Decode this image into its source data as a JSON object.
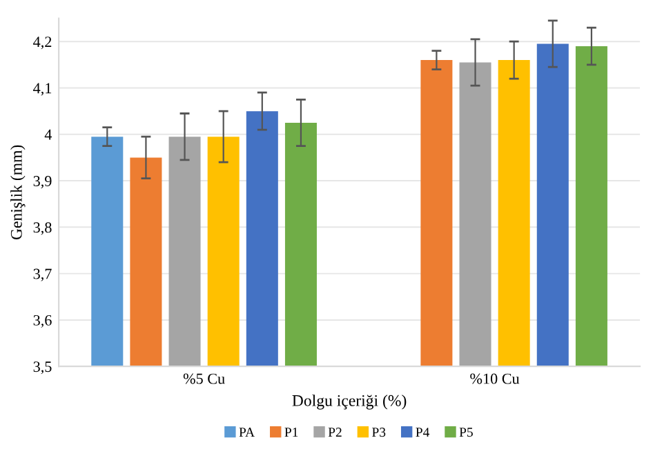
{
  "chart_data": {
    "type": "bar",
    "xlabel": "Dolgu içeriği (%)",
    "ylabel": "Genişlik (mm)",
    "categories": [
      "%5 Cu",
      "%10 Cu"
    ],
    "series": [
      {
        "name": "PA",
        "color": "#5b9bd5",
        "values": [
          3.995,
          null
        ],
        "errors": [
          0.02,
          null
        ]
      },
      {
        "name": "P1",
        "color": "#ed7d31",
        "values": [
          3.95,
          4.16
        ],
        "errors": [
          0.045,
          0.02
        ]
      },
      {
        "name": "P2",
        "color": "#a5a5a5",
        "values": [
          3.995,
          4.155
        ],
        "errors": [
          0.05,
          0.05
        ]
      },
      {
        "name": "P3",
        "color": "#ffc000",
        "values": [
          3.995,
          4.16
        ],
        "errors": [
          0.055,
          0.04
        ]
      },
      {
        "name": "P4",
        "color": "#4472c4",
        "values": [
          4.05,
          4.195
        ],
        "errors": [
          0.04,
          0.05
        ]
      },
      {
        "name": "P5",
        "color": "#70ad47",
        "values": [
          4.025,
          4.19
        ],
        "errors": [
          0.05,
          0.04
        ]
      }
    ],
    "ylim": [
      3.5,
      4.25
    ],
    "yticks": [
      {
        "value": 3.5,
        "label": "3,5"
      },
      {
        "value": 3.6,
        "label": "3,6"
      },
      {
        "value": 3.7,
        "label": "3,7"
      },
      {
        "value": 3.8,
        "label": "3,8"
      },
      {
        "value": 3.9,
        "label": "3,9"
      },
      {
        "value": 4,
        "label": "4"
      },
      {
        "value": 4.1,
        "label": "4,1"
      },
      {
        "value": 4.2,
        "label": "4,2"
      }
    ],
    "grid": "y",
    "legend": "bottom"
  }
}
